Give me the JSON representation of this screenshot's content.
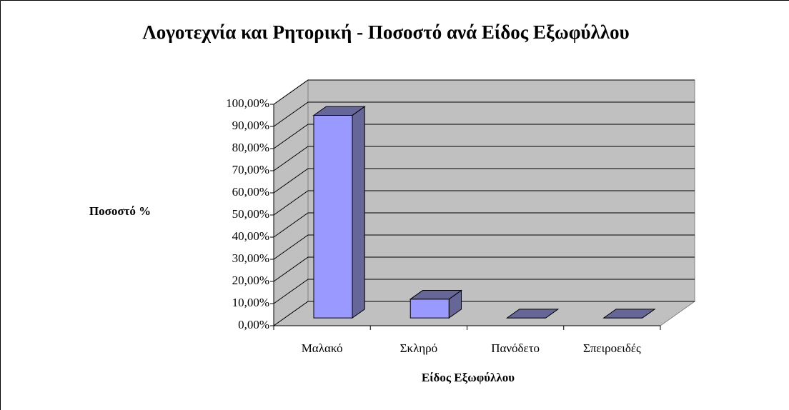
{
  "chart_data": {
    "type": "bar3d",
    "title": "Λογοτεχνία και Ρητορική - Ποσοστό ανά Είδος Εξωφύλλου",
    "y_label": "Ποσοστό %",
    "x_label": "Είδος Εξωφύλλου",
    "categories": [
      "Μαλακό",
      "Σκληρό",
      "Πανόδετο",
      "Σπειροειδές"
    ],
    "values": [
      91.5,
      8.5,
      0,
      0
    ],
    "color": "#9999ff",
    "shade_color": "#666699",
    "wall_color": "#c0c0c0",
    "ylim": [
      0,
      100
    ],
    "yticks": [
      {
        "value": 0,
        "label": "0,00%"
      },
      {
        "value": 10,
        "label": "10,00%"
      },
      {
        "value": 20,
        "label": "20,00%"
      },
      {
        "value": 30,
        "label": "30,00%"
      },
      {
        "value": 40,
        "label": "40,00%"
      },
      {
        "value": 50,
        "label": "50,00%"
      },
      {
        "value": 60,
        "label": "60,00%"
      },
      {
        "value": 70,
        "label": "70,00%"
      },
      {
        "value": 80,
        "label": "80,00%"
      },
      {
        "value": 90,
        "label": "90,00%"
      },
      {
        "value": 100,
        "label": "100,00%"
      }
    ],
    "grid": true
  }
}
